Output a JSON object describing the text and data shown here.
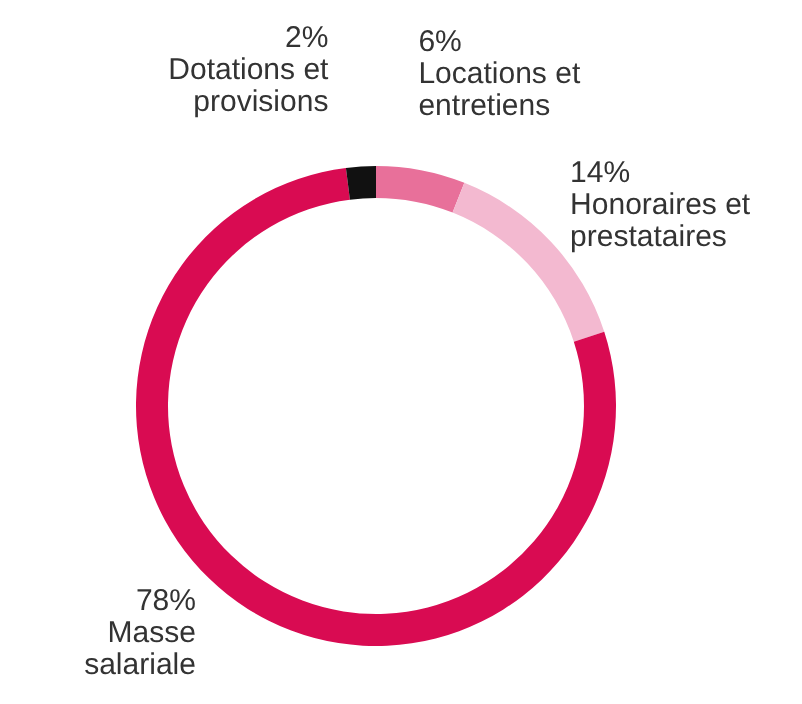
{
  "chart_data": {
    "type": "donut",
    "categories": [
      "Locations et entretiens",
      "Honoraires et prestataires",
      "Masse salariale",
      "Dotations et provisions"
    ],
    "values": [
      6,
      14,
      78,
      2
    ],
    "value_labels": [
      "6%",
      "14%",
      "78%",
      "2%"
    ],
    "colors": [
      "#e8709a",
      "#f3b9d0",
      "#d90b52",
      "#111111"
    ],
    "legend": false
  }
}
